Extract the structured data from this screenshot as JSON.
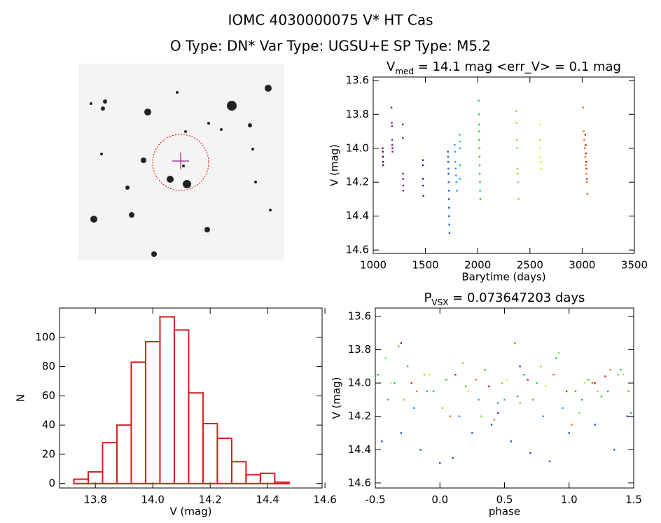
{
  "title": "IOMC 4030000075   V* HT Cas",
  "subtitle": "O Type: DN*  Var Type: UGSU+E  SP Type: M5.2",
  "chart_data": [
    {
      "type": "scatter",
      "title": "V",
      "title_sub": "med",
      "title_rest": " = 14.1 mag <err_V> = 0.1 mag",
      "xlabel": "Barytime (days)",
      "ylabel": "V (mag)",
      "xlim": [
        1000,
        3500
      ],
      "ylim": [
        13.58,
        14.62
      ],
      "y_inverted": true,
      "xticks": [
        1000,
        1500,
        2000,
        2500,
        3000,
        3500
      ],
      "yticks": [
        13.6,
        13.8,
        {
          "value": 14,
          "label": "14.0"
        },
        14.2,
        14.4,
        14.6
      ],
      "series": [
        {
          "color": "#3a0a3a",
          "x": [
            1090,
            1092,
            1093,
            1094,
            1095
          ],
          "values": [
            14.0,
            14.02,
            14.05,
            14.08,
            14.1
          ]
        },
        {
          "color": "#7a1a9a",
          "x": [
            1175,
            1178,
            1180,
            1181,
            1182,
            1184,
            1185
          ],
          "values": [
            13.76,
            13.85,
            13.87,
            13.95,
            13.98,
            14.0,
            14.02
          ]
        },
        {
          "color": "#5a20a0",
          "x": [
            1283,
            1284,
            1285,
            1286,
            1287,
            1288
          ],
          "values": [
            13.86,
            13.94,
            14.15,
            14.18,
            14.22,
            14.25
          ]
        },
        {
          "color": "#1a1aa0",
          "x": [
            1475,
            1476,
            1477,
            1478,
            1480
          ],
          "values": [
            14.07,
            14.1,
            14.18,
            14.22,
            14.28
          ]
        },
        {
          "color": "#1a50d0",
          "x": [
            1715,
            1717,
            1718,
            1720,
            1721,
            1722,
            1724,
            1725,
            1726,
            1727,
            1728,
            1730
          ],
          "values": [
            14.02,
            14.05,
            14.08,
            14.12,
            14.15,
            14.2,
            14.25,
            14.3,
            14.35,
            14.4,
            14.45,
            14.5
          ]
        },
        {
          "color": "#20a0e0",
          "x": [
            1780,
            1783,
            1786,
            1790,
            1793,
            1796,
            1800
          ],
          "values": [
            13.98,
            14.02,
            14.08,
            14.12,
            14.16,
            14.2,
            14.25
          ]
        },
        {
          "color": "#20c0a0",
          "x": [
            1828,
            1829,
            1830,
            1831,
            1832
          ],
          "values": [
            13.92,
            13.96,
            14.0,
            14.1,
            14.18
          ]
        },
        {
          "color": "#20d040",
          "x": [
            2010,
            2012,
            2013,
            2014,
            2015,
            2016,
            2018,
            2019,
            2020,
            2022,
            2023,
            2025
          ],
          "values": [
            13.72,
            13.8,
            13.86,
            13.9,
            13.95,
            14.0,
            14.05,
            14.1,
            14.15,
            14.2,
            14.25,
            14.3
          ]
        },
        {
          "color": "#80e030",
          "x": [
            2370,
            2372,
            2375,
            2378,
            2380,
            2383,
            2386,
            2390
          ],
          "values": [
            13.78,
            13.85,
            13.95,
            14.0,
            14.12,
            14.15,
            14.2,
            14.3
          ]
        },
        {
          "color": "#e8e020",
          "x": [
            2595,
            2597,
            2599,
            2601,
            2603,
            2605
          ],
          "values": [
            13.86,
            13.95,
            14.0,
            14.05,
            14.08,
            14.12
          ]
        },
        {
          "color": "#f07010",
          "x": [
            3010,
            3015,
            3020,
            3025,
            3030,
            3035,
            3040,
            3045,
            3050
          ],
          "values": [
            13.76,
            13.9,
            13.95,
            14.0,
            14.05,
            14.1,
            14.15,
            14.2,
            14.27
          ]
        },
        {
          "color": "#d02020",
          "x": [
            3030,
            3033,
            3036,
            3039,
            3042,
            3045
          ],
          "values": [
            13.92,
            13.98,
            14.03,
            14.08,
            14.12,
            14.18
          ]
        }
      ]
    },
    {
      "type": "histogram",
      "xlabel": "V (mag)",
      "ylabel": "N",
      "color": "#d42020",
      "xlim": [
        13.675,
        14.59
      ],
      "ylim": [
        -3,
        120
      ],
      "xticks": [
        13.8,
        {
          "value": 14,
          "label": "14.0"
        },
        14.2,
        14.4,
        14.6
      ],
      "yticks": [
        0,
        20,
        40,
        60,
        80,
        100
      ],
      "bins": [
        13.725,
        13.775,
        13.825,
        13.875,
        13.925,
        13.975,
        14.025,
        14.075,
        14.125,
        14.175,
        14.225,
        14.275,
        14.325,
        14.375,
        14.425,
        14.475,
        14.525
      ],
      "counts": [
        3,
        8,
        28,
        40,
        83,
        97,
        114,
        105,
        62,
        41,
        31,
        15,
        6,
        7,
        1,
        0
      ]
    },
    {
      "type": "scatter",
      "title": "P",
      "title_sub": "VSX",
      "title_rest": " = 0.073647203 days",
      "xlabel": "phase",
      "ylabel": "V (mag)",
      "xlim": [
        -0.5,
        1.5
      ],
      "ylim": [
        13.55,
        14.63
      ],
      "y_inverted": true,
      "xticks": [
        -0.5,
        {
          "value": 0,
          "label": "0.0"
        },
        0.5,
        {
          "value": 1,
          "label": "1.0"
        },
        1.5
      ],
      "yticks": [
        13.6,
        13.8,
        {
          "value": 14,
          "label": "14.0"
        },
        14.2,
        14.4,
        14.6
      ],
      "series": [
        {
          "color": "#1a50d0",
          "x": [
            -0.45,
            -0.3,
            -0.15,
            0.0,
            0.1,
            0.25,
            0.4,
            0.55,
            0.7,
            0.85,
            1.0,
            1.2,
            1.35,
            1.45
          ],
          "values": [
            14.35,
            14.3,
            14.4,
            14.48,
            14.45,
            14.3,
            14.25,
            14.35,
            14.42,
            14.47,
            14.3,
            14.25,
            14.4,
            14.2
          ]
        },
        {
          "color": "#20a0e0",
          "x": [
            -0.4,
            -0.2,
            -0.05,
            0.15,
            0.3,
            0.45,
            0.6,
            0.8,
            0.95,
            1.1,
            1.3,
            1.48
          ],
          "values": [
            14.1,
            14.15,
            14.05,
            14.2,
            14.1,
            14.12,
            14.08,
            14.2,
            14.15,
            14.1,
            14.05,
            14.18
          ]
        },
        {
          "color": "#20d040",
          "x": [
            -0.48,
            -0.35,
            -0.25,
            -0.1,
            0.05,
            0.2,
            0.35,
            0.5,
            0.65,
            0.75,
            0.9,
            1.05,
            1.15,
            1.25,
            1.4
          ],
          "values": [
            13.95,
            14.0,
            13.9,
            14.05,
            13.98,
            14.02,
            13.92,
            14.1,
            13.95,
            14.0,
            13.85,
            14.05,
            13.98,
            14.08,
            13.92
          ]
        },
        {
          "color": "#80e030",
          "x": [
            -0.42,
            -0.28,
            -0.12,
            0.02,
            0.18,
            0.32,
            0.48,
            0.62,
            0.78,
            0.92,
            1.08,
            1.22,
            1.38
          ],
          "values": [
            13.85,
            14.1,
            13.95,
            14.15,
            13.88,
            14.2,
            14.0,
            14.12,
            13.9,
            13.82,
            14.18,
            14.05,
            13.95
          ]
        },
        {
          "color": "#e8e020",
          "x": [
            -0.38,
            -0.08,
            0.22,
            0.52,
            0.82,
            1.12,
            1.42
          ],
          "values": [
            14.0,
            13.95,
            14.05,
            13.98,
            14.02,
            14.0,
            13.95
          ]
        },
        {
          "color": "#f07010",
          "x": [
            -0.32,
            -0.18,
            0.08,
            0.28,
            0.42,
            0.58,
            0.72,
            0.88,
            1.02,
            1.18,
            1.32,
            1.46
          ],
          "values": [
            13.78,
            14.05,
            14.2,
            13.98,
            14.22,
            13.76,
            14.1,
            13.95,
            14.25,
            14.0,
            13.92,
            14.05
          ]
        },
        {
          "color": "#d02020",
          "x": [
            -0.22,
            0.12,
            0.38,
            0.68,
            0.98,
            1.28
          ],
          "values": [
            14.0,
            13.95,
            14.02,
            13.98,
            14.05,
            13.96
          ]
        },
        {
          "color": "#7a1a9a",
          "x": [
            -0.3,
            0.45,
            0.62,
            1.2
          ],
          "values": [
            13.76,
            14.18,
            13.9,
            14.0
          ]
        }
      ]
    }
  ]
}
